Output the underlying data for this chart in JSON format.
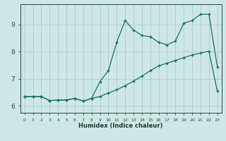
{
  "xlabel": "Humidex (Indice chaleur)",
  "bg_color": "#cde8e4",
  "line_color": "#1e6e62",
  "grid_color": "#aaccc8",
  "xlim": [
    -0.5,
    23.5
  ],
  "ylim": [
    5.75,
    9.75
  ],
  "yticks": [
    6,
    7,
    8,
    9
  ],
  "xticks": [
    0,
    1,
    2,
    3,
    4,
    5,
    6,
    7,
    8,
    9,
    10,
    11,
    12,
    13,
    14,
    15,
    16,
    17,
    18,
    19,
    20,
    21,
    22,
    23
  ],
  "line1_x": [
    0,
    1,
    2,
    3,
    4,
    5,
    6,
    7,
    8,
    9,
    10,
    11,
    12,
    13,
    14,
    15,
    16,
    17,
    18,
    19,
    20,
    21,
    22,
    23
  ],
  "line1_y": [
    6.35,
    6.35,
    6.35,
    6.2,
    6.22,
    6.22,
    6.28,
    6.18,
    6.28,
    6.35,
    6.48,
    6.6,
    6.75,
    6.92,
    7.1,
    7.3,
    7.48,
    7.58,
    7.68,
    7.78,
    7.88,
    7.95,
    8.02,
    6.55
  ],
  "line2_x": [
    0,
    1,
    2,
    3,
    4,
    5,
    6,
    7,
    8,
    9,
    10,
    11,
    12,
    13,
    14,
    15,
    16,
    17,
    18,
    19,
    20,
    21,
    22,
    23
  ],
  "line2_y": [
    6.35,
    6.35,
    6.35,
    6.2,
    6.22,
    6.22,
    6.28,
    6.18,
    6.28,
    6.9,
    7.3,
    8.35,
    9.15,
    8.8,
    8.6,
    8.55,
    8.35,
    8.25,
    8.4,
    9.05,
    9.15,
    9.38,
    9.38,
    7.45
  ]
}
